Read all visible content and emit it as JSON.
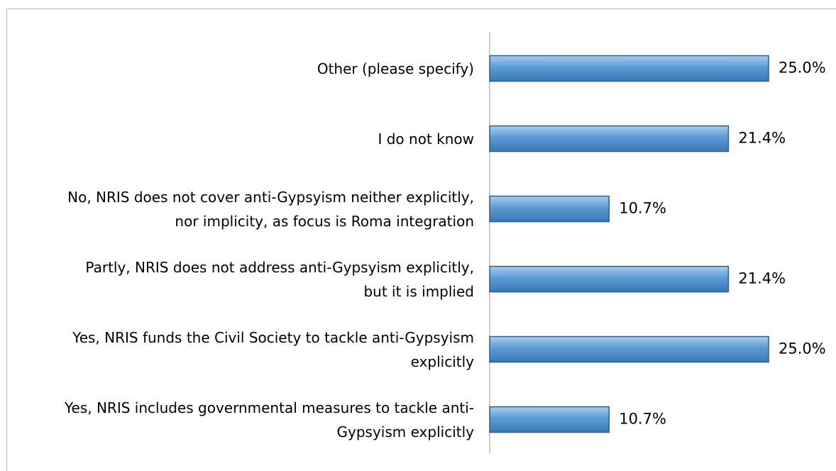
{
  "chart_data": {
    "type": "bar",
    "orientation": "horizontal",
    "categories": [
      "Other (please specify)",
      "I do not know",
      "No, NRIS does not cover anti-Gypsyism neither explicitly, nor implicity, as focus is Roma integration",
      "Partly, NRIS does not address anti-Gypsyism explicitly, but it is implied",
      "Yes, NRIS funds the Civil Society to tackle anti-Gypsyism explicitly",
      "Yes, NRIS includes governmental measures to tackle anti-Gypsyism explicitly"
    ],
    "values": [
      25,
      21.4,
      10.7,
      21.4,
      25,
      10.7
    ],
    "value_labels": [
      "25.0%",
      "21.4%",
      "10.7%",
      "21.4%",
      "25.0%",
      "10.7%"
    ],
    "color": "#5b9bd5"
  }
}
